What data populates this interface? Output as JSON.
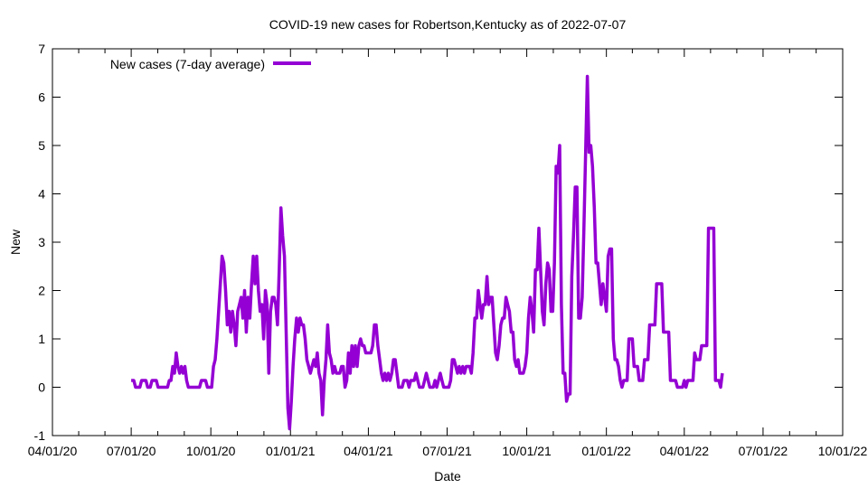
{
  "chart_data": {
    "type": "line",
    "title": "COVID-19 new cases for Robertson,Kentucky as of 2022-07-07",
    "xlabel": "Date",
    "ylabel": "New",
    "ylim": [
      -1,
      7
    ],
    "yticks": [
      "-1",
      "0",
      "1",
      "2",
      "3",
      "4",
      "5",
      "6",
      "7"
    ],
    "xlim": [
      "2020-04-01",
      "2022-10-01"
    ],
    "xticks": [
      {
        "date": "2020-04-01",
        "label": "04/01/20"
      },
      {
        "date": "2020-07-01",
        "label": "07/01/20"
      },
      {
        "date": "2020-10-01",
        "label": "10/01/20"
      },
      {
        "date": "2021-01-01",
        "label": "01/01/21"
      },
      {
        "date": "2021-04-01",
        "label": "04/01/21"
      },
      {
        "date": "2021-07-01",
        "label": "07/01/21"
      },
      {
        "date": "2021-10-01",
        "label": "10/01/21"
      },
      {
        "date": "2022-01-01",
        "label": "01/01/22"
      },
      {
        "date": "2022-04-01",
        "label": "04/01/22"
      },
      {
        "date": "2022-07-01",
        "label": "07/01/22"
      },
      {
        "date": "2022-10-01",
        "label": "10/01/22"
      }
    ],
    "grid": false,
    "legend": {
      "position": "top-left",
      "entries": [
        "New cases (7-day average)"
      ]
    },
    "series": [
      {
        "name": "New cases (7-day average)",
        "color": "#9400d3",
        "x_unit": "days since 2020-04-01",
        "points": [
          [
            91,
            0.14
          ],
          [
            94,
            0.14
          ],
          [
            96,
            0
          ],
          [
            101,
            0
          ],
          [
            103,
            0.14
          ],
          [
            108,
            0.14
          ],
          [
            110,
            0
          ],
          [
            113,
            0
          ],
          [
            115,
            0.14
          ],
          [
            120,
            0.14
          ],
          [
            122,
            0
          ],
          [
            133,
            0
          ],
          [
            135,
            0.14
          ],
          [
            137,
            0.14
          ],
          [
            139,
            0.43
          ],
          [
            141,
            0.29
          ],
          [
            143,
            0.71
          ],
          [
            145,
            0.43
          ],
          [
            147,
            0.29
          ],
          [
            149,
            0.43
          ],
          [
            151,
            0.29
          ],
          [
            153,
            0.43
          ],
          [
            155,
            0.14
          ],
          [
            157,
            0
          ],
          [
            170,
            0
          ],
          [
            172,
            0.14
          ],
          [
            177,
            0.14
          ],
          [
            179,
            0
          ],
          [
            184,
            0
          ],
          [
            186,
            0.43
          ],
          [
            188,
            0.57
          ],
          [
            190,
            1
          ],
          [
            192,
            1.57
          ],
          [
            194,
            2.14
          ],
          [
            196,
            2.71
          ],
          [
            198,
            2.57
          ],
          [
            200,
            2
          ],
          [
            202,
            1.29
          ],
          [
            204,
            1.57
          ],
          [
            206,
            1.14
          ],
          [
            208,
            1.57
          ],
          [
            210,
            1.29
          ],
          [
            212,
            0.86
          ],
          [
            214,
            1.57
          ],
          [
            216,
            1.71
          ],
          [
            218,
            1.86
          ],
          [
            220,
            1.43
          ],
          [
            222,
            2
          ],
          [
            224,
            1.14
          ],
          [
            226,
            1.86
          ],
          [
            228,
            1.43
          ],
          [
            230,
            2.14
          ],
          [
            232,
            2.71
          ],
          [
            234,
            2.14
          ],
          [
            236,
            2.71
          ],
          [
            238,
            2
          ],
          [
            240,
            1.57
          ],
          [
            242,
            1.71
          ],
          [
            244,
            1
          ],
          [
            246,
            2
          ],
          [
            248,
            1.71
          ],
          [
            250,
            0.29
          ],
          [
            252,
            1.57
          ],
          [
            254,
            1.86
          ],
          [
            256,
            1.86
          ],
          [
            258,
            1.71
          ],
          [
            260,
            1.29
          ],
          [
            262,
            2.43
          ],
          [
            264,
            3.71
          ],
          [
            266,
            3.14
          ],
          [
            268,
            2.71
          ],
          [
            270,
            1.14
          ],
          [
            272,
            -0.43
          ],
          [
            274,
            -0.86
          ],
          [
            276,
            -0.29
          ],
          [
            278,
            0.43
          ],
          [
            280,
            1
          ],
          [
            282,
            1.43
          ],
          [
            284,
            1.14
          ],
          [
            286,
            1.43
          ],
          [
            288,
            1.29
          ],
          [
            290,
            1.29
          ],
          [
            292,
            1
          ],
          [
            294,
            0.57
          ],
          [
            296,
            0.43
          ],
          [
            298,
            0.29
          ],
          [
            300,
            0.43
          ],
          [
            302,
            0.57
          ],
          [
            304,
            0.43
          ],
          [
            306,
            0.71
          ],
          [
            308,
            0.29
          ],
          [
            310,
            0.14
          ],
          [
            312,
            -0.57
          ],
          [
            314,
            0.14
          ],
          [
            316,
            0.57
          ],
          [
            318,
            1.29
          ],
          [
            320,
            0.71
          ],
          [
            322,
            0.57
          ],
          [
            324,
            0.29
          ],
          [
            326,
            0.43
          ],
          [
            328,
            0.29
          ],
          [
            330,
            0.29
          ],
          [
            332,
            0.29
          ],
          [
            334,
            0.43
          ],
          [
            336,
            0.43
          ],
          [
            338,
            0
          ],
          [
            340,
            0.14
          ],
          [
            342,
            0.71
          ],
          [
            344,
            0.29
          ],
          [
            346,
            0.86
          ],
          [
            348,
            0.43
          ],
          [
            350,
            0.86
          ],
          [
            352,
            0.43
          ],
          [
            354,
            0.86
          ],
          [
            356,
            1
          ],
          [
            358,
            0.86
          ],
          [
            360,
            0.86
          ],
          [
            362,
            0.71
          ],
          [
            364,
            0.71
          ],
          [
            366,
            0.71
          ],
          [
            368,
            0.71
          ],
          [
            370,
            0.86
          ],
          [
            372,
            1.29
          ],
          [
            374,
            1.29
          ],
          [
            376,
            0.86
          ],
          [
            378,
            0.57
          ],
          [
            380,
            0.29
          ],
          [
            382,
            0.14
          ],
          [
            384,
            0.29
          ],
          [
            386,
            0.14
          ],
          [
            388,
            0.29
          ],
          [
            390,
            0.14
          ],
          [
            392,
            0.29
          ],
          [
            394,
            0.57
          ],
          [
            396,
            0.57
          ],
          [
            398,
            0.29
          ],
          [
            400,
            0
          ],
          [
            404,
            0
          ],
          [
            406,
            0.14
          ],
          [
            410,
            0.14
          ],
          [
            412,
            0
          ],
          [
            414,
            0.14
          ],
          [
            418,
            0.14
          ],
          [
            420,
            0.29
          ],
          [
            422,
            0.14
          ],
          [
            424,
            0
          ],
          [
            428,
            0
          ],
          [
            430,
            0.14
          ],
          [
            432,
            0.29
          ],
          [
            434,
            0.14
          ],
          [
            436,
            0
          ],
          [
            440,
            0
          ],
          [
            442,
            0.14
          ],
          [
            444,
            0
          ],
          [
            446,
            0.14
          ],
          [
            448,
            0.29
          ],
          [
            450,
            0.14
          ],
          [
            452,
            0
          ],
          [
            458,
            0
          ],
          [
            460,
            0.14
          ],
          [
            462,
            0.57
          ],
          [
            464,
            0.57
          ],
          [
            466,
            0.43
          ],
          [
            468,
            0.29
          ],
          [
            470,
            0.43
          ],
          [
            472,
            0.29
          ],
          [
            474,
            0.43
          ],
          [
            476,
            0.29
          ],
          [
            478,
            0.43
          ],
          [
            480,
            0.43
          ],
          [
            482,
            0.43
          ],
          [
            484,
            0.29
          ],
          [
            486,
            0.71
          ],
          [
            488,
            1.43
          ],
          [
            490,
            1.43
          ],
          [
            492,
            2
          ],
          [
            494,
            1.71
          ],
          [
            496,
            1.43
          ],
          [
            498,
            1.71
          ],
          [
            500,
            1.71
          ],
          [
            502,
            2.29
          ],
          [
            504,
            1.71
          ],
          [
            506,
            1.86
          ],
          [
            508,
            1.86
          ],
          [
            510,
            1.29
          ],
          [
            512,
            0.71
          ],
          [
            514,
            0.57
          ],
          [
            516,
            0.86
          ],
          [
            518,
            1.29
          ],
          [
            520,
            1.43
          ],
          [
            522,
            1.43
          ],
          [
            524,
            1.86
          ],
          [
            526,
            1.71
          ],
          [
            528,
            1.57
          ],
          [
            530,
            1.14
          ],
          [
            532,
            1.14
          ],
          [
            534,
            0.57
          ],
          [
            536,
            0.43
          ],
          [
            538,
            0.57
          ],
          [
            540,
            0.29
          ],
          [
            542,
            0.29
          ],
          [
            544,
            0.29
          ],
          [
            546,
            0.43
          ],
          [
            548,
            0.71
          ],
          [
            550,
            1.43
          ],
          [
            552,
            1.86
          ],
          [
            554,
            1.57
          ],
          [
            556,
            1.14
          ],
          [
            558,
            2.43
          ],
          [
            560,
            2.43
          ],
          [
            562,
            3.29
          ],
          [
            564,
            2.43
          ],
          [
            566,
            1.57
          ],
          [
            568,
            1.29
          ],
          [
            570,
            2.14
          ],
          [
            572,
            2.57
          ],
          [
            574,
            2.43
          ],
          [
            576,
            1.57
          ],
          [
            578,
            1.57
          ],
          [
            580,
            2.57
          ],
          [
            582,
            4.57
          ],
          [
            584,
            4.43
          ],
          [
            586,
            5
          ],
          [
            588,
            1.71
          ],
          [
            590,
            0.29
          ],
          [
            592,
            0.29
          ],
          [
            594,
            -0.29
          ],
          [
            596,
            -0.14
          ],
          [
            598,
            -0.14
          ],
          [
            600,
            2.29
          ],
          [
            602,
            3.14
          ],
          [
            604,
            4.14
          ],
          [
            606,
            4.14
          ],
          [
            608,
            1.43
          ],
          [
            610,
            1.43
          ],
          [
            612,
            1.86
          ],
          [
            614,
            3.29
          ],
          [
            616,
            4.86
          ],
          [
            618,
            6.43
          ],
          [
            620,
            4.86
          ],
          [
            622,
            5
          ],
          [
            624,
            4.57
          ],
          [
            626,
            3.71
          ],
          [
            628,
            2.57
          ],
          [
            630,
            2.57
          ],
          [
            632,
            2.14
          ],
          [
            634,
            1.71
          ],
          [
            636,
            2.14
          ],
          [
            638,
            1.86
          ],
          [
            640,
            1.57
          ],
          [
            642,
            2.71
          ],
          [
            644,
            2.86
          ],
          [
            646,
            2.86
          ],
          [
            648,
            1
          ],
          [
            650,
            0.57
          ],
          [
            652,
            0.57
          ],
          [
            654,
            0.43
          ],
          [
            656,
            0.14
          ],
          [
            658,
            0
          ],
          [
            660,
            0.14
          ],
          [
            664,
            0.14
          ],
          [
            666,
            1
          ],
          [
            670,
            1
          ],
          [
            672,
            0.43
          ],
          [
            676,
            0.43
          ],
          [
            678,
            0.14
          ],
          [
            682,
            0.14
          ],
          [
            684,
            0.57
          ],
          [
            688,
            0.57
          ],
          [
            690,
            1.29
          ],
          [
            696,
            1.29
          ],
          [
            698,
            2.14
          ],
          [
            704,
            2.14
          ],
          [
            706,
            1.14
          ],
          [
            712,
            1.14
          ],
          [
            714,
            0.14
          ],
          [
            720,
            0.14
          ],
          [
            722,
            0
          ],
          [
            728,
            0
          ],
          [
            730,
            0.14
          ],
          [
            732,
            0
          ],
          [
            734,
            0.14
          ],
          [
            740,
            0.14
          ],
          [
            742,
            0.71
          ],
          [
            744,
            0.57
          ],
          [
            748,
            0.57
          ],
          [
            750,
            0.86
          ],
          [
            756,
            0.86
          ],
          [
            758,
            3.29
          ],
          [
            764,
            3.29
          ],
          [
            766,
            0.14
          ],
          [
            770,
            0.14
          ],
          [
            772,
            0
          ],
          [
            774,
            0.29
          ]
        ]
      }
    ]
  }
}
